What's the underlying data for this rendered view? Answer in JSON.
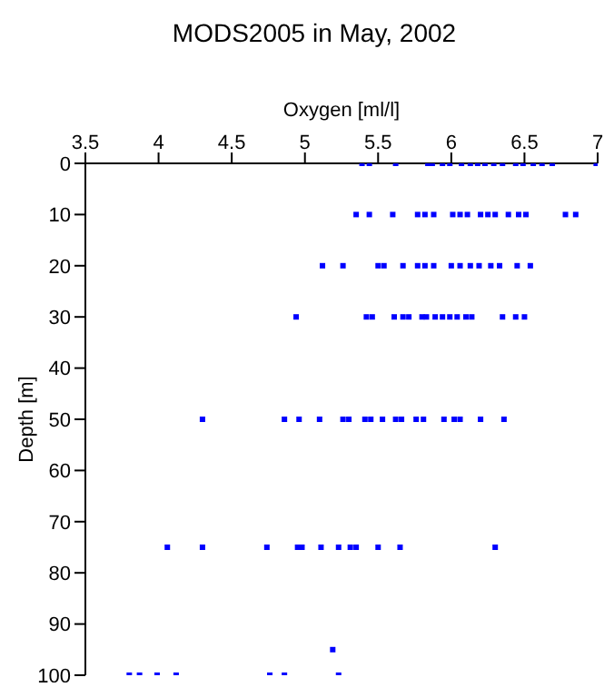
{
  "chart_data": {
    "type": "scatter",
    "title": "MODS2005 in May, 2002",
    "xlabel": "Oxygen [ml/l]",
    "ylabel": "Depth [m]",
    "xlim": [
      3.5,
      7
    ],
    "xticks": [
      3.5,
      4,
      4.5,
      5,
      5.5,
      6,
      6.5,
      7
    ],
    "ylim": [
      100,
      0
    ],
    "yticks": [
      0,
      10,
      20,
      30,
      40,
      50,
      60,
      70,
      80,
      90,
      100
    ],
    "grid": false,
    "legend": false,
    "marker": "square",
    "series": [
      {
        "color": "#0000ff",
        "x": [
          5.39,
          5.44,
          5.62,
          5.84,
          5.87,
          5.94,
          5.99,
          6.07,
          6.13,
          6.18,
          6.23,
          6.29,
          6.35,
          6.44,
          6.49,
          6.56,
          6.62,
          6.69,
          6.99,
          5.35,
          5.44,
          5.6,
          5.77,
          5.82,
          5.88,
          6.01,
          6.06,
          6.11,
          6.2,
          6.25,
          6.3,
          6.39,
          6.46,
          6.51,
          6.78,
          6.85,
          5.12,
          5.26,
          5.5,
          5.54,
          5.67,
          5.77,
          5.82,
          5.88,
          6.0,
          6.06,
          6.13,
          6.19,
          6.27,
          6.33,
          6.45,
          6.54,
          4.94,
          5.42,
          5.46,
          5.61,
          5.67,
          5.71,
          5.8,
          5.83,
          5.89,
          5.94,
          5.99,
          6.04,
          6.1,
          6.14,
          6.35,
          6.44,
          6.5,
          4.3,
          4.86,
          4.96,
          5.1,
          5.26,
          5.3,
          5.41,
          5.45,
          5.53,
          5.62,
          5.66,
          5.76,
          5.81,
          5.95,
          6.02,
          6.06,
          6.2,
          6.36,
          4.06,
          4.3,
          4.74,
          4.95,
          4.98,
          5.11,
          5.23,
          5.31,
          5.35,
          5.5,
          5.65,
          6.3,
          5.19,
          3.8,
          3.87,
          3.99,
          4.12,
          4.76,
          4.86,
          5.23
        ],
        "values": [
          0,
          0,
          0,
          0,
          0,
          0,
          0,
          0,
          0,
          0,
          0,
          0,
          0,
          0,
          0,
          0,
          0,
          0,
          0,
          10,
          10,
          10,
          10,
          10,
          10,
          10,
          10,
          10,
          10,
          10,
          10,
          10,
          10,
          10,
          10,
          10,
          20,
          20,
          20,
          20,
          20,
          20,
          20,
          20,
          20,
          20,
          20,
          20,
          20,
          20,
          20,
          20,
          30,
          30,
          30,
          30,
          30,
          30,
          30,
          30,
          30,
          30,
          30,
          30,
          30,
          30,
          30,
          30,
          30,
          50,
          50,
          50,
          50,
          50,
          50,
          50,
          50,
          50,
          50,
          50,
          50,
          50,
          50,
          50,
          50,
          50,
          50,
          75,
          75,
          75,
          75,
          75,
          75,
          75,
          75,
          75,
          75,
          75,
          75,
          95,
          100,
          100,
          100,
          100,
          100,
          100,
          100
        ]
      }
    ]
  }
}
